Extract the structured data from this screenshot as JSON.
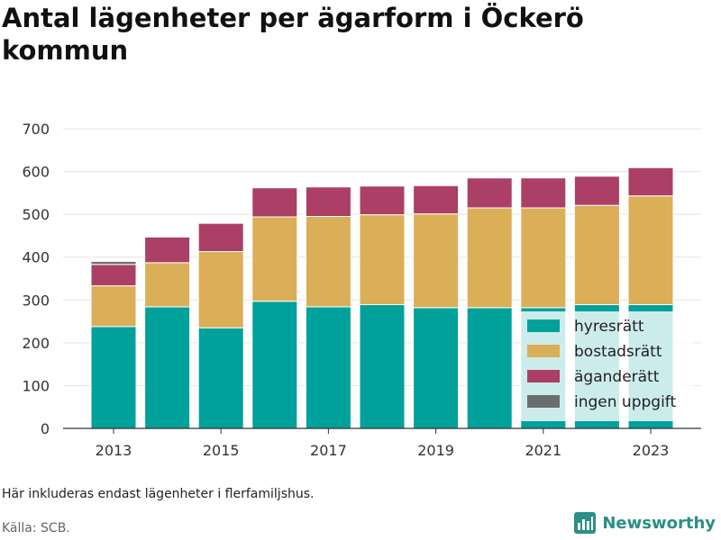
{
  "header": {
    "title": "Antal lägenheter per ägarform i Öckerö kommun"
  },
  "chart_data": {
    "type": "bar",
    "stacked": true,
    "title": "Antal lägenheter per ägarform i Öckerö kommun",
    "xlabel": "",
    "ylabel": "",
    "categories": [
      "2013",
      "2014",
      "2015",
      "2016",
      "2017",
      "2018",
      "2019",
      "2020",
      "2021",
      "2022",
      "2023"
    ],
    "x_tick_labels": [
      "2013",
      "2015",
      "2017",
      "2019",
      "2021",
      "2023"
    ],
    "ylim": [
      0,
      700
    ],
    "y_ticks": [
      0,
      100,
      200,
      300,
      400,
      500,
      600,
      700
    ],
    "grid": true,
    "legend_position": "bottom-right",
    "series": [
      {
        "name": "hyresrätt",
        "color": "#00a19a",
        "values": [
          238,
          284,
          235,
          297,
          284,
          289,
          282,
          282,
          282,
          289,
          289
        ]
      },
      {
        "name": "bostadsrätt",
        "color": "#dbae58",
        "values": [
          95,
          103,
          178,
          197,
          211,
          210,
          219,
          233,
          233,
          232,
          254
        ]
      },
      {
        "name": "äganderätt",
        "color": "#ab3f66",
        "values": [
          50,
          60,
          66,
          68,
          69,
          67,
          66,
          70,
          70,
          68,
          66
        ]
      },
      {
        "name": "ingen uppgift",
        "color": "#6b6e70",
        "values": [
          7,
          0,
          0,
          0,
          0,
          0,
          0,
          0,
          0,
          0,
          0
        ]
      }
    ]
  },
  "footer": {
    "note": "Här inkluderas endast lägenheter i flerfamiljshus.",
    "source": "Källa: SCB.",
    "brand": "Newsworthy"
  },
  "colors": {
    "grid": "#e3e3e3",
    "axis": "#333333",
    "brand": "#2a8f86"
  }
}
